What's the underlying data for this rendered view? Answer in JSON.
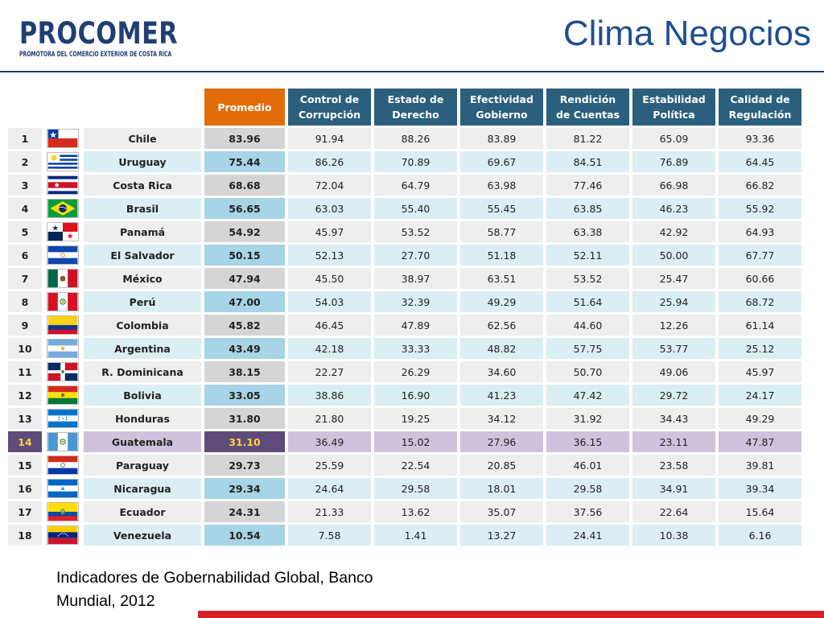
{
  "header": {
    "logo_text": "PROCOMER",
    "logo_subtitle": "PROMOTORA DEL COMERCIO EXTERIOR DE COSTA RICA",
    "title": "Clima Negocios"
  },
  "table": {
    "columns": {
      "promedio": "Promedio",
      "corrupcion": [
        "Control de",
        "Corrupción"
      ],
      "derecho": [
        "Estado de",
        "Derecho"
      ],
      "efectividad": [
        "Efectividad",
        "Gobierno"
      ],
      "rendicion": [
        "Rendición",
        "de Cuentas"
      ],
      "estabilidad": [
        "Estabilidad",
        "Política"
      ],
      "regulacion": [
        "Calidad de",
        "Regulación"
      ]
    },
    "rows": [
      {
        "rank": "1",
        "country": "Chile",
        "flag": "chile-flag-icon",
        "promedio": "83.96",
        "vals": [
          "91.94",
          "88.26",
          "83.89",
          "81.22",
          "65.09",
          "93.36"
        ]
      },
      {
        "rank": "2",
        "country": "Uruguay",
        "flag": "uruguay-flag-icon",
        "promedio": "75.44",
        "vals": [
          "86.26",
          "70.89",
          "69.67",
          "84.51",
          "76.89",
          "64.45"
        ]
      },
      {
        "rank": "3",
        "country": "Costa Rica",
        "flag": "costa-rica-flag-icon",
        "promedio": "68.68",
        "vals": [
          "72.04",
          "64.79",
          "63.98",
          "77.46",
          "66.98",
          "66.82"
        ]
      },
      {
        "rank": "4",
        "country": "Brasil",
        "flag": "brasil-flag-icon",
        "promedio": "56.65",
        "vals": [
          "63.03",
          "55.40",
          "55.45",
          "63.85",
          "46.23",
          "55.92"
        ]
      },
      {
        "rank": "5",
        "country": "Panamá",
        "flag": "panama-flag-icon",
        "promedio": "54.92",
        "vals": [
          "45.97",
          "53.52",
          "58.77",
          "63.38",
          "42.92",
          "64.93"
        ]
      },
      {
        "rank": "6",
        "country": "El Salvador",
        "flag": "el-salvador-flag-icon",
        "promedio": "50.15",
        "vals": [
          "52.13",
          "27.70",
          "51.18",
          "52.11",
          "50.00",
          "67.77"
        ]
      },
      {
        "rank": "7",
        "country": "México",
        "flag": "mexico-flag-icon",
        "promedio": "47.94",
        "vals": [
          "45.50",
          "38.97",
          "63.51",
          "53.52",
          "25.47",
          "60.66"
        ]
      },
      {
        "rank": "8",
        "country": "Perú",
        "flag": "peru-flag-icon",
        "promedio": "47.00",
        "vals": [
          "54.03",
          "32.39",
          "49.29",
          "51.64",
          "25.94",
          "68.72"
        ]
      },
      {
        "rank": "9",
        "country": "Colombia",
        "flag": "colombia-flag-icon",
        "promedio": "45.82",
        "vals": [
          "46.45",
          "47.89",
          "62.56",
          "44.60",
          "12.26",
          "61.14"
        ]
      },
      {
        "rank": "10",
        "country": "Argentina",
        "flag": "argentina-flag-icon",
        "promedio": "43.49",
        "vals": [
          "42.18",
          "33.33",
          "48.82",
          "57.75",
          "53.77",
          "25.12"
        ]
      },
      {
        "rank": "11",
        "country": "R. Dominicana",
        "flag": "dominican-republic-flag-icon",
        "promedio": "38.15",
        "vals": [
          "22.27",
          "26.29",
          "34.60",
          "50.70",
          "49.06",
          "45.97"
        ]
      },
      {
        "rank": "12",
        "country": "Bolivia",
        "flag": "bolivia-flag-icon",
        "promedio": "33.05",
        "vals": [
          "38.86",
          "16.90",
          "41.23",
          "47.42",
          "29.72",
          "24.17"
        ]
      },
      {
        "rank": "13",
        "country": "Honduras",
        "flag": "honduras-flag-icon",
        "promedio": "31.80",
        "vals": [
          "21.80",
          "19.25",
          "34.12",
          "31.92",
          "34.43",
          "49.29"
        ]
      },
      {
        "rank": "14",
        "country": "Guatemala",
        "flag": "guatemala-flag-icon",
        "promedio": "31.10",
        "vals": [
          "36.49",
          "15.02",
          "27.96",
          "36.15",
          "23.11",
          "47.87"
        ],
        "highlight": true
      },
      {
        "rank": "15",
        "country": "Paraguay",
        "flag": "paraguay-flag-icon",
        "promedio": "29.73",
        "vals": [
          "25.59",
          "22.54",
          "20.85",
          "46.01",
          "23.58",
          "39.81"
        ]
      },
      {
        "rank": "16",
        "country": "Nicaragua",
        "flag": "nicaragua-flag-icon",
        "promedio": "29.34",
        "vals": [
          "24.64",
          "29.58",
          "18.01",
          "29.58",
          "34.91",
          "39.34"
        ]
      },
      {
        "rank": "17",
        "country": "Ecuador",
        "flag": "ecuador-flag-icon",
        "promedio": "24.31",
        "vals": [
          "21.33",
          "13.62",
          "35.07",
          "37.56",
          "22.64",
          "15.64"
        ]
      },
      {
        "rank": "18",
        "country": "Venezuela",
        "flag": "venezuela-flag-icon",
        "promedio": "10.54",
        "vals": [
          "7.58",
          "1.41",
          "13.27",
          "24.41",
          "10.38",
          "6.16"
        ]
      }
    ]
  },
  "caption": [
    "Indicadores de Gobernabilidad Global, Banco",
    "Mundial, 2012"
  ],
  "colors": {
    "brand_blue": "#1f3f73",
    "title_blue": "#1f4f8f",
    "header_teal": "#2b5f7d",
    "header_orange": "#e36c0a",
    "highlight_purple": "#5f4b7a",
    "highlight_text": "#ffd23f",
    "accent_red": "#d32029"
  }
}
